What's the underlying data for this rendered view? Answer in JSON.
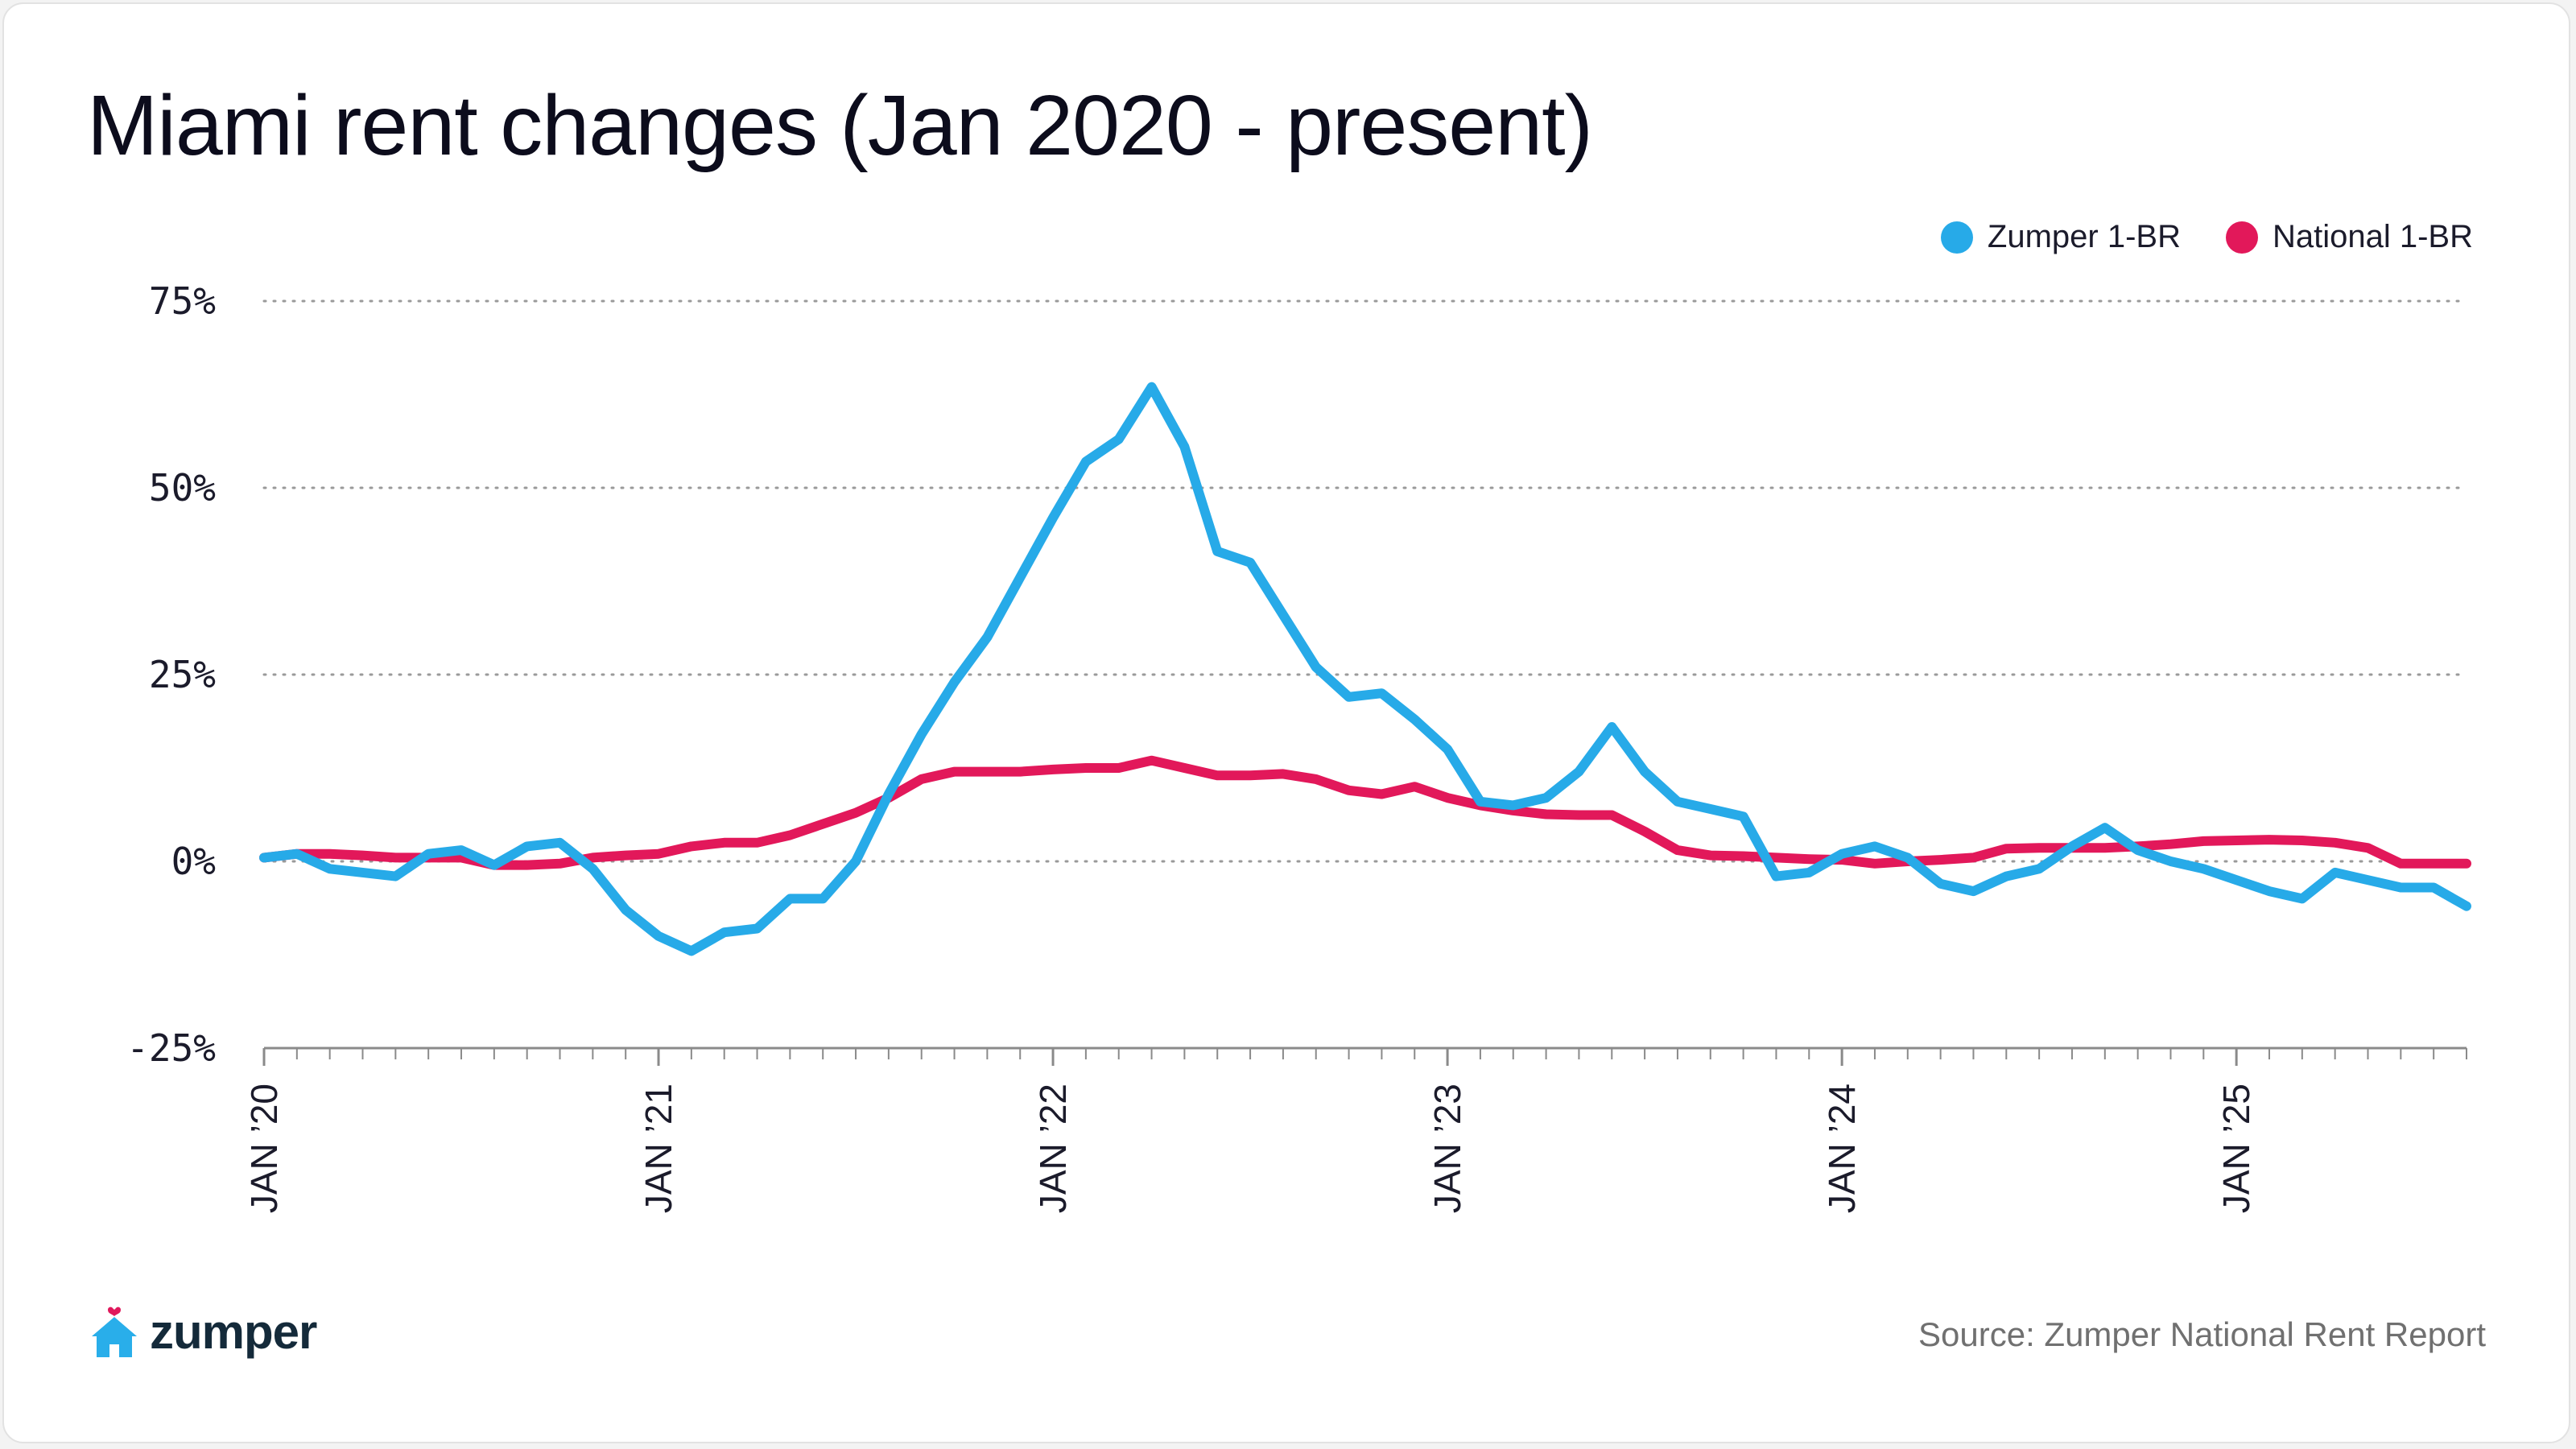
{
  "title": "Miami rent changes (Jan 2020 - present)",
  "brand": {
    "name": "zumper",
    "icon": "house-heart-icon",
    "color": "#29aeea",
    "heart_color": "#e0195c"
  },
  "source": "Source: Zumper National Rent Report",
  "chart_data": {
    "type": "line",
    "title": "Miami rent changes (Jan 2020 - present)",
    "xlabel": "",
    "ylabel": "",
    "ylim": [
      -25,
      75
    ],
    "y_ticks": [
      {
        "value": 75,
        "label": "75%"
      },
      {
        "value": 50,
        "label": "50%"
      },
      {
        "value": 25,
        "label": "25%"
      },
      {
        "value": 0,
        "label": "0%"
      },
      {
        "value": -25,
        "label": "-25%"
      }
    ],
    "x_labels": [
      {
        "index": 0,
        "label": "JAN ’20"
      },
      {
        "index": 12,
        "label": "JAN ’21"
      },
      {
        "index": 24,
        "label": "JAN ’22"
      },
      {
        "index": 36,
        "label": "JAN ’23"
      },
      {
        "index": 48,
        "label": "JAN ’24"
      },
      {
        "index": 60,
        "label": "JAN ’25"
      }
    ],
    "x_start": "2020-01",
    "num_points": 68,
    "grid": true,
    "legend_position": "top-right",
    "series": [
      {
        "name": "Zumper 1-BR",
        "color": "#27aae8",
        "values": [
          0.5,
          1,
          -1,
          -1.5,
          -2,
          1,
          1.5,
          -0.5,
          2,
          2.5,
          -1,
          -6.5,
          -10,
          -12,
          -9.5,
          -9,
          -5,
          -5,
          0,
          9,
          17,
          24,
          30,
          38,
          46,
          53.5,
          56.5,
          63.5,
          55.5,
          41.5,
          40,
          33,
          26,
          22,
          22.5,
          19,
          15,
          8,
          7.5,
          8.5,
          12,
          18,
          12,
          8,
          7,
          6,
          -2,
          -1.5,
          1,
          2,
          0.5,
          -3,
          -4,
          -2,
          -1,
          2,
          4.5,
          1.5,
          0,
          -1,
          -2.5,
          -4,
          -5,
          -1.5,
          -2.5,
          -3.5,
          -3.5,
          -6
        ]
      },
      {
        "name": "National 1-BR",
        "color": "#e2185a",
        "values": [
          0.5,
          1,
          1,
          0.8,
          0.5,
          0.5,
          0.5,
          -0.5,
          -0.5,
          -0.3,
          0.5,
          0.8,
          1,
          2,
          2.5,
          2.5,
          3.5,
          5,
          6.5,
          8.5,
          11,
          12,
          12,
          12,
          12.3,
          12.5,
          12.5,
          13.5,
          12.5,
          11.5,
          11.5,
          11.7,
          11,
          9.5,
          9,
          10,
          8.5,
          7.5,
          6.8,
          6.3,
          6.2,
          6.2,
          4,
          1.5,
          0.8,
          0.7,
          0.5,
          0.3,
          0.2,
          -0.3,
          0,
          0.2,
          0.5,
          1.7,
          1.8,
          1.8,
          1.8,
          2,
          2.3,
          2.7,
          2.8,
          2.9,
          2.8,
          2.5,
          1.8,
          -0.3,
          -0.3,
          -0.3
        ]
      }
    ]
  }
}
